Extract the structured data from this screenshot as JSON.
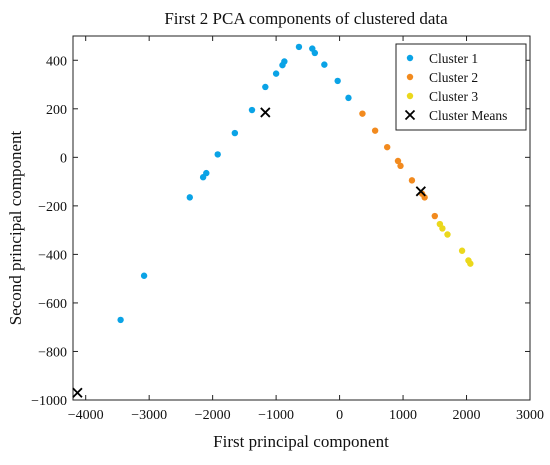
{
  "chart_data": {
    "type": "scatter",
    "title": "First 2 PCA components of clustered data",
    "xlabel": "First principal component",
    "ylabel": "Second principal component",
    "xlim": [
      -4200,
      3000
    ],
    "ylim": [
      -1000,
      500
    ],
    "xticks": [
      -4000,
      -3000,
      -2000,
      -1000,
      0,
      1000,
      2000,
      3000
    ],
    "yticks": [
      -1000,
      -800,
      -600,
      -400,
      -200,
      0,
      200,
      400
    ],
    "grid": false,
    "legend_position": "top-right",
    "series": [
      {
        "name": "Cluster 1",
        "color": "#0aa3e6",
        "marker": "dot",
        "points": [
          [
            -3450,
            -670
          ],
          [
            -3080,
            -488
          ],
          [
            -2360,
            -165
          ],
          [
            -2100,
            -65
          ],
          [
            -2150,
            -82
          ],
          [
            -1920,
            12
          ],
          [
            -1650,
            100
          ],
          [
            -1380,
            195
          ],
          [
            -1170,
            290
          ],
          [
            -1000,
            345
          ],
          [
            -900,
            380
          ],
          [
            -870,
            395
          ],
          [
            -640,
            455
          ],
          [
            -430,
            448
          ],
          [
            -390,
            430
          ],
          [
            -240,
            382
          ],
          [
            -30,
            315
          ],
          [
            140,
            245
          ]
        ]
      },
      {
        "name": "Cluster 2",
        "color": "#f28a1e",
        "marker": "dot",
        "points": [
          [
            360,
            180
          ],
          [
            560,
            110
          ],
          [
            750,
            42
          ],
          [
            920,
            -15
          ],
          [
            960,
            -35
          ],
          [
            1140,
            -95
          ],
          [
            1300,
            -150
          ],
          [
            1340,
            -165
          ],
          [
            1500,
            -242
          ]
        ]
      },
      {
        "name": "Cluster 3",
        "color": "#ebd81c",
        "marker": "dot",
        "points": [
          [
            1580,
            -275
          ],
          [
            1620,
            -293
          ],
          [
            1700,
            -318
          ],
          [
            1930,
            -385
          ],
          [
            2030,
            -425
          ],
          [
            2060,
            -438
          ]
        ]
      },
      {
        "name": "Cluster Means",
        "color": "#000000",
        "marker": "x",
        "points": [
          [
            -1170,
            185
          ],
          [
            1280,
            -140
          ],
          [
            -4130,
            -970
          ]
        ]
      }
    ]
  }
}
